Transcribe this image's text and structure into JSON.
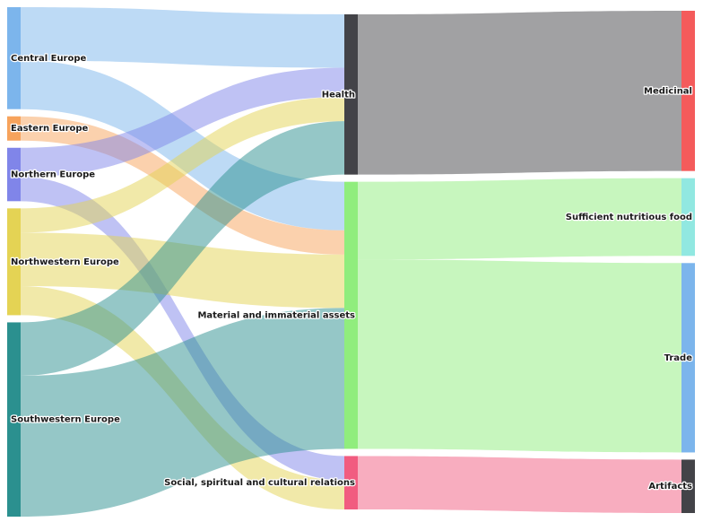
{
  "chart_data": {
    "type": "sankey",
    "title": "",
    "nodes": [
      {
        "id": "central",
        "label": "Central Europe",
        "color": "#7cb5ec",
        "column": 0
      },
      {
        "id": "eastern",
        "label": "Eastern Europe",
        "color": "#f7a35c",
        "column": 0
      },
      {
        "id": "northern",
        "label": "Northern Europe",
        "color": "#8085e9",
        "column": 0
      },
      {
        "id": "northwestern",
        "label": "Northwestern Europe",
        "color": "#e4d354",
        "column": 0
      },
      {
        "id": "southwestern",
        "label": "Southwestern Europe",
        "color": "#2b908f",
        "column": 0
      },
      {
        "id": "health",
        "label": "Health",
        "color": "#434348",
        "column": 1
      },
      {
        "id": "assets",
        "label": "Material and immaterial assets",
        "color": "#90ed7d",
        "column": 1
      },
      {
        "id": "social",
        "label": "Social, spiritual and cultural relations",
        "color": "#f15c80",
        "column": 1
      },
      {
        "id": "medicinal",
        "label": "Medicinal",
        "color": "#f45b5b",
        "column": 2
      },
      {
        "id": "food",
        "label": "Sufficient nutritious food",
        "color": "#91e8e1",
        "column": 2
      },
      {
        "id": "trade",
        "label": "Trade",
        "color": "#7cb5ec",
        "column": 2
      },
      {
        "id": "artifacts",
        "label": "Artifacts",
        "color": "#434348",
        "column": 2
      }
    ],
    "links": [
      {
        "source": "central",
        "target": "health",
        "value": 11
      },
      {
        "source": "central",
        "target": "assets",
        "value": 10
      },
      {
        "source": "eastern",
        "target": "assets",
        "value": 5
      },
      {
        "source": "northern",
        "target": "health",
        "value": 6
      },
      {
        "source": "northern",
        "target": "social",
        "value": 5
      },
      {
        "source": "northwestern",
        "target": "health",
        "value": 5
      },
      {
        "source": "northwestern",
        "target": "assets",
        "value": 11
      },
      {
        "source": "northwestern",
        "target": "social",
        "value": 6
      },
      {
        "source": "southwestern",
        "target": "health",
        "value": 11
      },
      {
        "source": "southwestern",
        "target": "assets",
        "value": 29
      },
      {
        "source": "health",
        "target": "medicinal",
        "value": 33
      },
      {
        "source": "assets",
        "target": "food",
        "value": 16
      },
      {
        "source": "assets",
        "target": "trade",
        "value": 39
      },
      {
        "source": "social",
        "target": "artifacts",
        "value": 11
      }
    ]
  }
}
